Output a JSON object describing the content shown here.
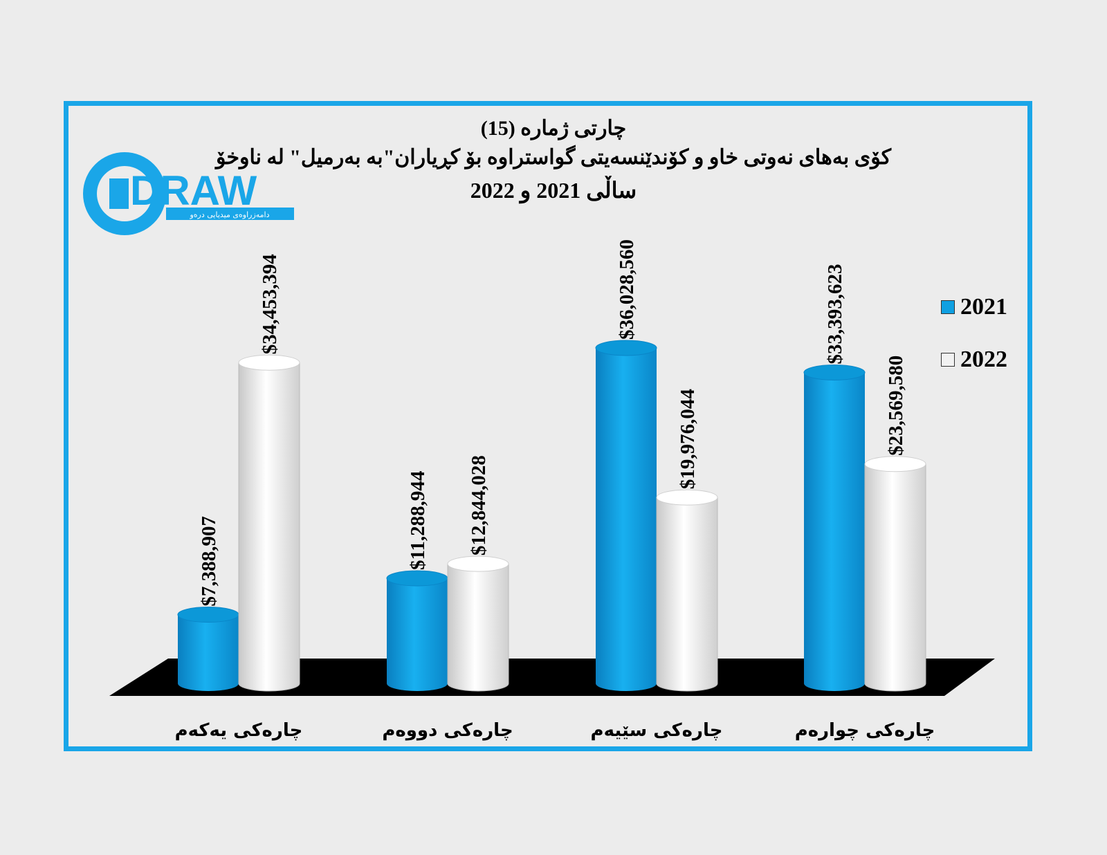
{
  "title": {
    "line1": "چارتی ژماره (15)",
    "line2": "كۆی بەهای نەوتی خاو و  كۆندێنسەیتی گواستراوە بۆ كڕیاران\"بە بەرمیل\" لە ناوخۆ",
    "line3": "ساڵی 2021 و 2022"
  },
  "logo": {
    "word": "DRAW",
    "tagline": "دامەزراوەی میدیایی درەو"
  },
  "colors": {
    "s2021": "#0fa0e2",
    "s2022": "#f2f2f2",
    "border": "#1aa6e8",
    "floor": "#000000"
  },
  "chart_data": {
    "type": "bar",
    "categories": [
      "چارەكی یەكەم",
      "چارەكی دووەم",
      "چارەكی سێیەم",
      "چارەكی چوارەم"
    ],
    "series": [
      {
        "name": "2021",
        "values": [
          7388907,
          11288944,
          36028560,
          33393623
        ],
        "labels": [
          "$7,388,907",
          "$11,288,944",
          "$36,028,560",
          "$33,393,623"
        ]
      },
      {
        "name": "2022",
        "values": [
          34453394,
          12844028,
          19976044,
          23569580
        ],
        "labels": [
          "$34,453,394",
          "$12,844,028",
          "$19,976,044",
          "$23,569,580"
        ]
      }
    ],
    "legend": "right"
  }
}
